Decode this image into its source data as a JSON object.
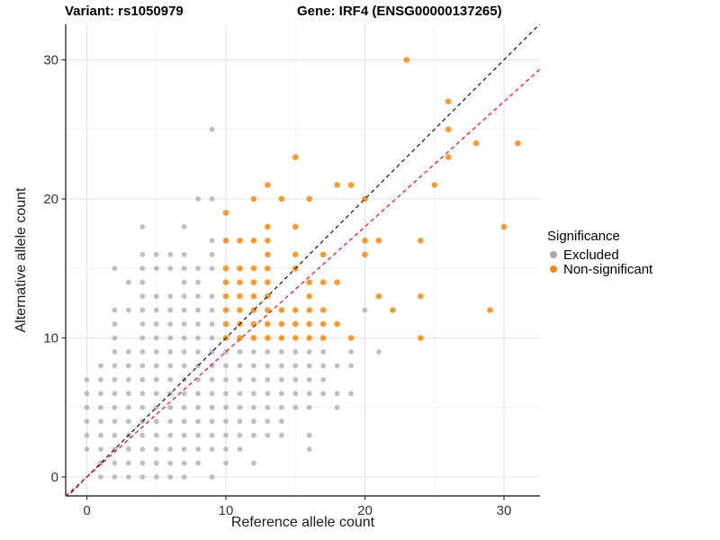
{
  "title_left": "Variant: rs1050979",
  "title_right": "Gene: IRF4 (ENSG00000137265)",
  "legend": {
    "title": "Significance",
    "items": [
      {
        "label": "Excluded",
        "color": "#ababab"
      },
      {
        "label": "Non-significant",
        "color": "#f8890b"
      }
    ]
  },
  "chart_data": {
    "type": "scatter",
    "title": "",
    "xlabel": "Reference allele count",
    "ylabel": "Alternative allele count",
    "x_ticks": [
      0,
      10,
      20,
      30
    ],
    "y_ticks": [
      0,
      10,
      20,
      30
    ],
    "xlim": [
      -1.52,
      32.6
    ],
    "ylim": [
      -1.36,
      32.56
    ],
    "grid": {
      "on": true,
      "major": [
        0,
        10,
        20,
        30
      ],
      "minor": [
        5,
        15,
        25
      ]
    },
    "legend_position": "right",
    "series": [
      {
        "name": "Excluded",
        "color": "#a6a6a6",
        "opacity": 0.72,
        "radius": 2.9,
        "points": [
          [
            1,
            0
          ],
          [
            2,
            0
          ],
          [
            3,
            0
          ],
          [
            4,
            0
          ],
          [
            5,
            0
          ],
          [
            6,
            0
          ],
          [
            7,
            0
          ],
          [
            9,
            0
          ],
          [
            1,
            1
          ],
          [
            2,
            1
          ],
          [
            3,
            1
          ],
          [
            4,
            1
          ],
          [
            5,
            1
          ],
          [
            6,
            1
          ],
          [
            7,
            1
          ],
          [
            8,
            1
          ],
          [
            10,
            1
          ],
          [
            12,
            1
          ],
          [
            0,
            2
          ],
          [
            1,
            2
          ],
          [
            2,
            2
          ],
          [
            3,
            2
          ],
          [
            4,
            2
          ],
          [
            5,
            2
          ],
          [
            6,
            2
          ],
          [
            7,
            2
          ],
          [
            8,
            2
          ],
          [
            9,
            2
          ],
          [
            10,
            2
          ],
          [
            11,
            2
          ],
          [
            16,
            2
          ],
          [
            0,
            3
          ],
          [
            1,
            3
          ],
          [
            2,
            3
          ],
          [
            3,
            3
          ],
          [
            4,
            3
          ],
          [
            5,
            3
          ],
          [
            6,
            3
          ],
          [
            7,
            3
          ],
          [
            8,
            3
          ],
          [
            9,
            3
          ],
          [
            10,
            3
          ],
          [
            11,
            3
          ],
          [
            12,
            3
          ],
          [
            13,
            3
          ],
          [
            14,
            3
          ],
          [
            16,
            3
          ],
          [
            0,
            4
          ],
          [
            1,
            4
          ],
          [
            2,
            4
          ],
          [
            3,
            4
          ],
          [
            4,
            4
          ],
          [
            5,
            4
          ],
          [
            6,
            4
          ],
          [
            7,
            4
          ],
          [
            8,
            4
          ],
          [
            9,
            4
          ],
          [
            10,
            4
          ],
          [
            11,
            4
          ],
          [
            12,
            4
          ],
          [
            13,
            4
          ],
          [
            14,
            4
          ],
          [
            0,
            5
          ],
          [
            1,
            5
          ],
          [
            2,
            5
          ],
          [
            3,
            5
          ],
          [
            4,
            5
          ],
          [
            5,
            5
          ],
          [
            6,
            5
          ],
          [
            7,
            5
          ],
          [
            8,
            5
          ],
          [
            9,
            5
          ],
          [
            10,
            5
          ],
          [
            11,
            5
          ],
          [
            12,
            5
          ],
          [
            13,
            5
          ],
          [
            14,
            5
          ],
          [
            15,
            5
          ],
          [
            16,
            5
          ],
          [
            18,
            5
          ],
          [
            0,
            6
          ],
          [
            1,
            6
          ],
          [
            2,
            6
          ],
          [
            3,
            6
          ],
          [
            4,
            6
          ],
          [
            5,
            6
          ],
          [
            6,
            6
          ],
          [
            7,
            6
          ],
          [
            8,
            6
          ],
          [
            9,
            6
          ],
          [
            10,
            6
          ],
          [
            11,
            6
          ],
          [
            12,
            6
          ],
          [
            13,
            6
          ],
          [
            14,
            6
          ],
          [
            15,
            6
          ],
          [
            16,
            6
          ],
          [
            17,
            6
          ],
          [
            18,
            6
          ],
          [
            19,
            6
          ],
          [
            0,
            7
          ],
          [
            1,
            7
          ],
          [
            2,
            7
          ],
          [
            3,
            7
          ],
          [
            4,
            7
          ],
          [
            5,
            7
          ],
          [
            6,
            7
          ],
          [
            7,
            7
          ],
          [
            8,
            7
          ],
          [
            9,
            7
          ],
          [
            10,
            7
          ],
          [
            11,
            7
          ],
          [
            12,
            7
          ],
          [
            13,
            7
          ],
          [
            14,
            7
          ],
          [
            15,
            7
          ],
          [
            16,
            7
          ],
          [
            17,
            7
          ],
          [
            1,
            8
          ],
          [
            2,
            8
          ],
          [
            3,
            8
          ],
          [
            4,
            8
          ],
          [
            5,
            8
          ],
          [
            6,
            8
          ],
          [
            7,
            8
          ],
          [
            8,
            8
          ],
          [
            9,
            8
          ],
          [
            10,
            8
          ],
          [
            11,
            8
          ],
          [
            12,
            8
          ],
          [
            13,
            8
          ],
          [
            14,
            8
          ],
          [
            15,
            8
          ],
          [
            16,
            8
          ],
          [
            17,
            8
          ],
          [
            18,
            8
          ],
          [
            19,
            8
          ],
          [
            2,
            9
          ],
          [
            3,
            9
          ],
          [
            4,
            9
          ],
          [
            5,
            9
          ],
          [
            6,
            9
          ],
          [
            7,
            9
          ],
          [
            8,
            9
          ],
          [
            9,
            9
          ],
          [
            10,
            9
          ],
          [
            11,
            9
          ],
          [
            12,
            9
          ],
          [
            13,
            9
          ],
          [
            14,
            9
          ],
          [
            15,
            9
          ],
          [
            16,
            9
          ],
          [
            17,
            9
          ],
          [
            19,
            9
          ],
          [
            21,
            9
          ],
          [
            2,
            10
          ],
          [
            4,
            10
          ],
          [
            5,
            10
          ],
          [
            6,
            10
          ],
          [
            7,
            10
          ],
          [
            8,
            10
          ],
          [
            9,
            10
          ],
          [
            2,
            11
          ],
          [
            4,
            11
          ],
          [
            5,
            11
          ],
          [
            6,
            11
          ],
          [
            7,
            11
          ],
          [
            8,
            11
          ],
          [
            9,
            11
          ],
          [
            2,
            12
          ],
          [
            3,
            12
          ],
          [
            4,
            12
          ],
          [
            5,
            12
          ],
          [
            6,
            12
          ],
          [
            7,
            12
          ],
          [
            8,
            12
          ],
          [
            9,
            12
          ],
          [
            20,
            12
          ],
          [
            4,
            13
          ],
          [
            5,
            13
          ],
          [
            6,
            13
          ],
          [
            7,
            13
          ],
          [
            8,
            13
          ],
          [
            9,
            13
          ],
          [
            3,
            14
          ],
          [
            4,
            14
          ],
          [
            7,
            14
          ],
          [
            8,
            14
          ],
          [
            2,
            15
          ],
          [
            4,
            15
          ],
          [
            5,
            15
          ],
          [
            6,
            15
          ],
          [
            7,
            15
          ],
          [
            8,
            15
          ],
          [
            9,
            15
          ],
          [
            4,
            16
          ],
          [
            5,
            16
          ],
          [
            6,
            16
          ],
          [
            7,
            16
          ],
          [
            9,
            16
          ],
          [
            9,
            17
          ],
          [
            4,
            18
          ],
          [
            7,
            18
          ],
          [
            8,
            20
          ],
          [
            9,
            20
          ],
          [
            9,
            25
          ]
        ]
      },
      {
        "name": "Non-significant",
        "color": "#f8890b",
        "opacity": 0.85,
        "radius": 3.3,
        "points": [
          [
            10,
            10
          ],
          [
            11,
            10
          ],
          [
            12,
            10
          ],
          [
            13,
            10
          ],
          [
            14,
            10
          ],
          [
            15,
            10
          ],
          [
            16,
            10
          ],
          [
            17,
            10
          ],
          [
            19,
            10
          ],
          [
            24,
            10
          ],
          [
            10,
            11
          ],
          [
            11,
            11
          ],
          [
            12,
            11
          ],
          [
            13,
            11
          ],
          [
            14,
            11
          ],
          [
            15,
            11
          ],
          [
            16,
            11
          ],
          [
            17,
            11
          ],
          [
            18,
            11
          ],
          [
            10,
            12
          ],
          [
            11,
            12
          ],
          [
            12,
            12
          ],
          [
            13,
            12
          ],
          [
            14,
            12
          ],
          [
            15,
            12
          ],
          [
            16,
            12
          ],
          [
            17,
            12
          ],
          [
            22,
            12
          ],
          [
            29,
            12
          ],
          [
            10,
            13
          ],
          [
            11,
            13
          ],
          [
            12,
            13
          ],
          [
            13,
            13
          ],
          [
            16,
            13
          ],
          [
            21,
            13
          ],
          [
            24,
            13
          ],
          [
            10,
            14
          ],
          [
            11,
            14
          ],
          [
            12,
            14
          ],
          [
            13,
            14
          ],
          [
            16,
            14
          ],
          [
            17,
            14
          ],
          [
            18,
            14
          ],
          [
            10,
            15
          ],
          [
            11,
            15
          ],
          [
            12,
            15
          ],
          [
            13,
            15
          ],
          [
            15,
            15
          ],
          [
            13,
            16
          ],
          [
            15,
            16
          ],
          [
            17,
            16
          ],
          [
            20,
            16
          ],
          [
            10,
            17
          ],
          [
            11,
            17
          ],
          [
            12,
            17
          ],
          [
            13,
            17
          ],
          [
            20,
            17
          ],
          [
            21,
            17
          ],
          [
            24,
            17
          ],
          [
            13,
            18
          ],
          [
            15,
            18
          ],
          [
            30,
            18
          ],
          [
            10,
            19
          ],
          [
            12,
            20
          ],
          [
            14,
            20
          ],
          [
            16,
            20
          ],
          [
            20,
            20
          ],
          [
            13,
            21
          ],
          [
            18,
            21
          ],
          [
            19,
            21
          ],
          [
            25,
            21
          ],
          [
            15,
            23
          ],
          [
            26,
            23
          ],
          [
            28,
            24
          ],
          [
            31,
            24
          ],
          [
            26,
            25
          ],
          [
            26,
            27
          ],
          [
            23,
            30
          ]
        ]
      }
    ],
    "lines": [
      {
        "name": "identity-line",
        "color": "#1a1a1a",
        "slope": 1.0,
        "intercept": 0,
        "dash": "4.5,3.5",
        "width": 1.25
      },
      {
        "name": "fit-line",
        "color": "#e8112d",
        "slope": 0.9,
        "intercept": 0,
        "dash": "4.5,3.5",
        "width": 1.25
      }
    ]
  }
}
